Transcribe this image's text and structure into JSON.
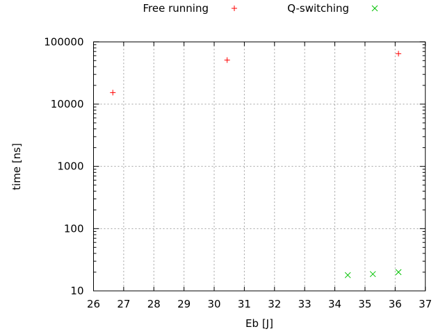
{
  "chart_data": {
    "type": "scatter",
    "title": "",
    "xlabel": "Eb [J]",
    "ylabel": "time [ns]",
    "xlim": [
      26,
      37
    ],
    "ylim": [
      10,
      100000
    ],
    "yscale": "log",
    "grid": true,
    "legend_position": "top (outside, horizontal)",
    "x_ticks": [
      "26",
      "27",
      "28",
      "29",
      "30",
      "31",
      "32",
      "33",
      "34",
      "35",
      "36",
      "37"
    ],
    "y_ticks": [
      "10",
      "100",
      "1000",
      "10000",
      "100000"
    ],
    "series": [
      {
        "name": "Free running",
        "marker": "plus",
        "color": "#ff0000",
        "x": [
          26.64,
          30.43,
          36.11
        ],
        "y": [
          15300,
          51000,
          64600
        ]
      },
      {
        "name": "Q-switching",
        "marker": "cross",
        "color": "#00c000",
        "x": [
          34.43,
          35.26,
          36.11
        ],
        "y": [
          17.9,
          18.6,
          20.0
        ]
      }
    ]
  }
}
